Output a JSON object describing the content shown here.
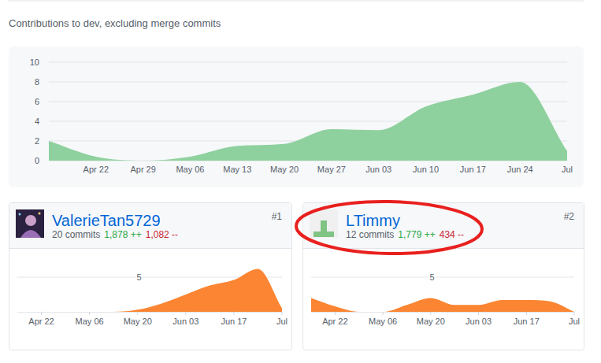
{
  "chart_data": [
    {
      "type": "area",
      "title": "Contributions to dev, excluding merge commits",
      "categories": [
        null,
        "Apr 22",
        "Apr 29",
        "May 06",
        "May 13",
        "May 20",
        "May 27",
        "Jun 03",
        "Jun 10",
        "Jun 17",
        "Jun 24",
        "Jul"
      ],
      "values": [
        2,
        0.4,
        0,
        0.4,
        1.5,
        1.7,
        3.2,
        3.1,
        5.5,
        6.7,
        8,
        1
      ],
      "color": "#8fd19e",
      "ylim": [
        0,
        10
      ],
      "yticks": [
        0,
        2,
        4,
        6,
        8,
        10
      ],
      "grid": true
    },
    {
      "type": "area",
      "categories": [
        null,
        "Apr 22",
        null,
        "May 06",
        null,
        "May 20",
        null,
        "Jun 03",
        null,
        "Jun 17",
        null,
        "Jul"
      ],
      "values": [
        0,
        0,
        0,
        0,
        0,
        0.3,
        1.2,
        2.5,
        3.8,
        4.6,
        6.2,
        0.5
      ],
      "color": "#fb8532",
      "ylim": [
        0,
        7
      ],
      "yticks": [
        5
      ],
      "grid": true
    },
    {
      "type": "area",
      "categories": [
        null,
        "Apr 22",
        null,
        "May 06",
        null,
        "May 20",
        null,
        "Jun 03",
        null,
        "Jun 17",
        null,
        "Jul"
      ],
      "values": [
        2,
        0.8,
        0,
        0,
        1,
        2,
        1,
        1,
        1.7,
        1.7,
        1.5,
        0
      ],
      "color": "#fb8532",
      "ylim": [
        0,
        7
      ],
      "yticks": [
        5
      ],
      "grid": true
    }
  ],
  "contributors": [
    {
      "rank": "#1",
      "name": "ValerieTan5729",
      "commits": "20 commits",
      "additions": "1,878 ++",
      "deletions": "1,082 --"
    },
    {
      "rank": "#2",
      "name": "LTimmy",
      "commits": "12 commits",
      "additions": "1,779 ++",
      "deletions": "434 --"
    }
  ]
}
